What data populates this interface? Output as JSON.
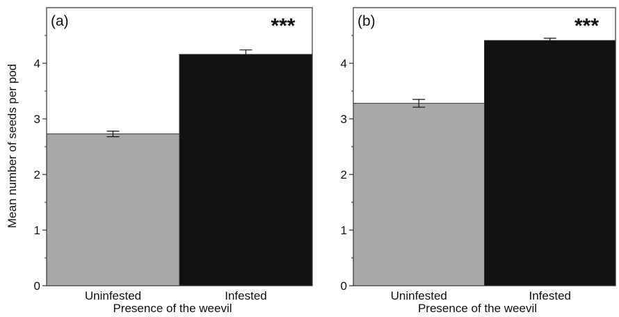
{
  "figure": {
    "ylabel": "Mean number of seeds per pod"
  },
  "chart_data": [
    {
      "type": "bar",
      "panel_label": "(a)",
      "significance": "***",
      "xlabel": "Presence of the weevil",
      "ylabel": "Mean number of seeds per pod",
      "categories": [
        "Uninfested",
        "Infested"
      ],
      "values": [
        2.73,
        4.16
      ],
      "errors": [
        0.05,
        0.08
      ],
      "colors": [
        "#a8a8a8",
        "#111111"
      ],
      "ylim": [
        0,
        5
      ],
      "yticks": [
        0,
        1,
        2,
        3,
        4
      ],
      "grid": false
    },
    {
      "type": "bar",
      "panel_label": "(b)",
      "significance": "***",
      "xlabel": "Presence of the weevil",
      "ylabel": "",
      "categories": [
        "Uninfested",
        "Infested"
      ],
      "values": [
        3.28,
        4.41
      ],
      "errors": [
        0.07,
        0.04
      ],
      "colors": [
        "#a8a8a8",
        "#111111"
      ],
      "ylim": [
        0,
        5
      ],
      "yticks": [
        0,
        1,
        2,
        3,
        4
      ],
      "grid": false
    }
  ]
}
